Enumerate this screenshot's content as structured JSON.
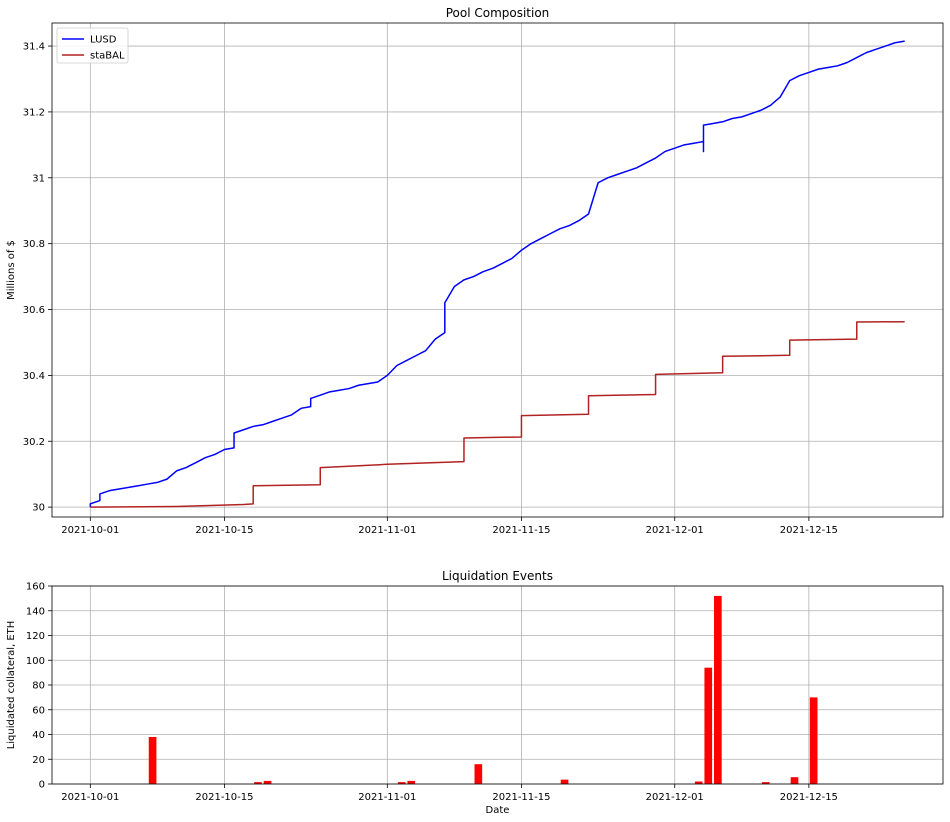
{
  "chart_data": [
    {
      "type": "line",
      "title": "Pool Composition",
      "xlabel": "",
      "ylabel": "Millions of $",
      "x_type": "date",
      "xlim": [
        "2021-09-27",
        "2021-12-29"
      ],
      "ylim": [
        29.97,
        31.47
      ],
      "x_ticks": [
        "2021-10-01",
        "2021-10-15",
        "2021-11-01",
        "2021-11-15",
        "2021-12-01",
        "2021-12-15"
      ],
      "y_ticks": [
        30,
        30.2,
        30.4,
        30.6,
        30.8,
        31,
        31.2,
        31.4
      ],
      "y_tick_labels": [
        "30",
        "30.2",
        "30.4",
        "30.6",
        "30.8",
        "31",
        "31.2",
        "31.4"
      ],
      "grid": true,
      "legend": "top-left",
      "series": [
        {
          "name": "LUSD",
          "color": "#0000ff",
          "points": [
            [
              "2021-10-01",
              30.0
            ],
            [
              "2021-10-01",
              30.01
            ],
            [
              "2021-10-02",
              30.02
            ],
            [
              "2021-10-02",
              30.04
            ],
            [
              "2021-10-03",
              30.05
            ],
            [
              "2021-10-04",
              30.055
            ],
            [
              "2021-10-05",
              30.06
            ],
            [
              "2021-10-06",
              30.065
            ],
            [
              "2021-10-07",
              30.07
            ],
            [
              "2021-10-08",
              30.075
            ],
            [
              "2021-10-09",
              30.085
            ],
            [
              "2021-10-10",
              30.11
            ],
            [
              "2021-10-11",
              30.12
            ],
            [
              "2021-10-12",
              30.135
            ],
            [
              "2021-10-13",
              30.15
            ],
            [
              "2021-10-14",
              30.16
            ],
            [
              "2021-10-15",
              30.175
            ],
            [
              "2021-10-16",
              30.18
            ],
            [
              "2021-10-16",
              30.225
            ],
            [
              "2021-10-17",
              30.235
            ],
            [
              "2021-10-18",
              30.245
            ],
            [
              "2021-10-19",
              30.25
            ],
            [
              "2021-10-20",
              30.26
            ],
            [
              "2021-10-21",
              30.27
            ],
            [
              "2021-10-22",
              30.28
            ],
            [
              "2021-10-23",
              30.3
            ],
            [
              "2021-10-24",
              30.305
            ],
            [
              "2021-10-24",
              30.33
            ],
            [
              "2021-10-25",
              30.34
            ],
            [
              "2021-10-26",
              30.35
            ],
            [
              "2021-10-27",
              30.355
            ],
            [
              "2021-10-28",
              30.36
            ],
            [
              "2021-10-29",
              30.37
            ],
            [
              "2021-10-30",
              30.375
            ],
            [
              "2021-10-31",
              30.38
            ],
            [
              "2021-11-01",
              30.4
            ],
            [
              "2021-11-02",
              30.43
            ],
            [
              "2021-11-03",
              30.445
            ],
            [
              "2021-11-04",
              30.46
            ],
            [
              "2021-11-05",
              30.475
            ],
            [
              "2021-11-06",
              30.51
            ],
            [
              "2021-11-07",
              30.53
            ],
            [
              "2021-11-07",
              30.62
            ],
            [
              "2021-11-08",
              30.67
            ],
            [
              "2021-11-09",
              30.69
            ],
            [
              "2021-11-10",
              30.7
            ],
            [
              "2021-11-11",
              30.715
            ],
            [
              "2021-11-12",
              30.725
            ],
            [
              "2021-11-13",
              30.74
            ],
            [
              "2021-11-14",
              30.755
            ],
            [
              "2021-11-15",
              30.78
            ],
            [
              "2021-11-16",
              30.8
            ],
            [
              "2021-11-17",
              30.815
            ],
            [
              "2021-11-18",
              30.83
            ],
            [
              "2021-11-19",
              30.845
            ],
            [
              "2021-11-20",
              30.855
            ],
            [
              "2021-11-21",
              30.87
            ],
            [
              "2021-11-22",
              30.89
            ],
            [
              "2021-11-23",
              30.985
            ],
            [
              "2021-11-24",
              31.0
            ],
            [
              "2021-11-25",
              31.01
            ],
            [
              "2021-11-26",
              31.02
            ],
            [
              "2021-11-27",
              31.03
            ],
            [
              "2021-11-28",
              31.045
            ],
            [
              "2021-11-29",
              31.06
            ],
            [
              "2021-11-30",
              31.08
            ],
            [
              "2021-12-01",
              31.09
            ],
            [
              "2021-12-02",
              31.1
            ],
            [
              "2021-12-03",
              31.105
            ],
            [
              "2021-12-04",
              31.11
            ],
            [
              "2021-12-04",
              31.08
            ],
            [
              "2021-12-04",
              31.16
            ],
            [
              "2021-12-05",
              31.165
            ],
            [
              "2021-12-06",
              31.17
            ],
            [
              "2021-12-07",
              31.18
            ],
            [
              "2021-12-08",
              31.185
            ],
            [
              "2021-12-09",
              31.195
            ],
            [
              "2021-12-10",
              31.205
            ],
            [
              "2021-12-11",
              31.22
            ],
            [
              "2021-12-12",
              31.245
            ],
            [
              "2021-12-13",
              31.295
            ],
            [
              "2021-12-14",
              31.31
            ],
            [
              "2021-12-15",
              31.32
            ],
            [
              "2021-12-16",
              31.33
            ],
            [
              "2021-12-17",
              31.335
            ],
            [
              "2021-12-18",
              31.34
            ],
            [
              "2021-12-19",
              31.35
            ],
            [
              "2021-12-20",
              31.365
            ],
            [
              "2021-12-21",
              31.38
            ],
            [
              "2021-12-22",
              31.39
            ],
            [
              "2021-12-23",
              31.4
            ],
            [
              "2021-12-24",
              31.41
            ],
            [
              "2021-12-25",
              31.415
            ]
          ]
        },
        {
          "name": "staBAL",
          "color": "#b22222",
          "points": [
            [
              "2021-10-01",
              30.0
            ],
            [
              "2021-10-10",
              30.002
            ],
            [
              "2021-10-17",
              30.008
            ],
            [
              "2021-10-18",
              30.01
            ],
            [
              "2021-10-18",
              30.065
            ],
            [
              "2021-10-25",
              30.068
            ],
            [
              "2021-10-25",
              30.12
            ],
            [
              "2021-11-01",
              30.13
            ],
            [
              "2021-11-09",
              30.138
            ],
            [
              "2021-11-09",
              30.21
            ],
            [
              "2021-11-15",
              30.213
            ],
            [
              "2021-11-15",
              30.278
            ],
            [
              "2021-11-22",
              30.282
            ],
            [
              "2021-11-22",
              30.338
            ],
            [
              "2021-11-29",
              30.342
            ],
            [
              "2021-11-29",
              30.403
            ],
            [
              "2021-12-06",
              30.408
            ],
            [
              "2021-12-06",
              30.458
            ],
            [
              "2021-12-13",
              30.461
            ],
            [
              "2021-12-13",
              30.507
            ],
            [
              "2021-12-20",
              30.51
            ],
            [
              "2021-12-20",
              30.562
            ],
            [
              "2021-12-25",
              30.563
            ]
          ]
        }
      ]
    },
    {
      "type": "bar",
      "title": "Liquidation Events",
      "xlabel": "Date",
      "ylabel": "Liquidated collateral, ETH",
      "x_type": "date",
      "xlim": [
        "2021-09-27",
        "2021-12-29"
      ],
      "ylim": [
        0,
        160
      ],
      "x_ticks": [
        "2021-10-01",
        "2021-10-15",
        "2021-11-01",
        "2021-11-15",
        "2021-12-01",
        "2021-12-15"
      ],
      "y_ticks": [
        0,
        20,
        40,
        60,
        80,
        100,
        120,
        140,
        160
      ],
      "y_tick_labels": [
        "0",
        "20",
        "40",
        "60",
        "80",
        "100",
        "120",
        "140",
        "160"
      ],
      "grid": true,
      "color": "#ff0000",
      "bars": [
        {
          "date": "2021-10-07",
          "value": 38
        },
        {
          "date": "2021-10-18",
          "value": 1.5
        },
        {
          "date": "2021-10-19",
          "value": 2.5
        },
        {
          "date": "2021-11-02",
          "value": 1.5
        },
        {
          "date": "2021-11-03",
          "value": 2.5
        },
        {
          "date": "2021-11-10",
          "value": 16
        },
        {
          "date": "2021-11-19",
          "value": 3.5
        },
        {
          "date": "2021-12-03",
          "value": 2
        },
        {
          "date": "2021-12-04",
          "value": 94
        },
        {
          "date": "2021-12-05",
          "value": 152
        },
        {
          "date": "2021-12-10",
          "value": 1.5
        },
        {
          "date": "2021-12-13",
          "value": 5.5
        },
        {
          "date": "2021-12-15",
          "value": 70
        }
      ]
    }
  ]
}
